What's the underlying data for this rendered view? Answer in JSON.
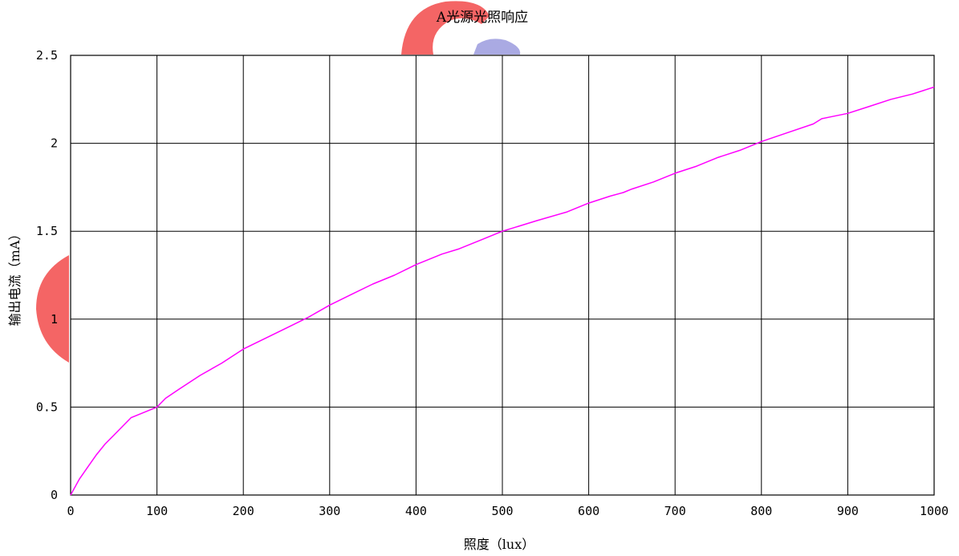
{
  "chart_data": {
    "type": "line",
    "title": "A光源光照响应",
    "xlabel": "照度（lux）",
    "ylabel": "输出电流（mA）",
    "xlim": [
      0,
      1000
    ],
    "ylim": [
      0,
      2.5
    ],
    "x_ticks": [
      0,
      100,
      200,
      300,
      400,
      500,
      600,
      700,
      800,
      900,
      1000
    ],
    "y_ticks": [
      0,
      0.5,
      1,
      1.5,
      2,
      2.5
    ],
    "x_tick_labels": [
      "0",
      "100",
      "200",
      "300",
      "400",
      "500",
      "600",
      "700",
      "800",
      "900",
      "1000"
    ],
    "y_tick_labels": [
      "0",
      "0.5",
      "1",
      "1.5",
      "2",
      "2.5"
    ],
    "grid": true,
    "series": [
      {
        "color": "#ff00ff",
        "x": [
          0,
          10,
          20,
          30,
          40,
          50,
          60,
          70,
          80,
          90,
          100,
          110,
          125,
          150,
          175,
          200,
          225,
          250,
          275,
          300,
          325,
          350,
          375,
          400,
          430,
          450,
          475,
          500,
          520,
          540,
          575,
          600,
          625,
          640,
          650,
          675,
          700,
          725,
          750,
          775,
          800,
          830,
          860,
          870,
          880,
          900,
          925,
          950,
          975,
          1000
        ],
        "y": [
          0,
          0.09,
          0.16,
          0.23,
          0.29,
          0.34,
          0.39,
          0.44,
          0.46,
          0.48,
          0.5,
          0.55,
          0.6,
          0.68,
          0.75,
          0.83,
          0.89,
          0.95,
          1.01,
          1.08,
          1.14,
          1.2,
          1.25,
          1.31,
          1.37,
          1.4,
          1.45,
          1.5,
          1.53,
          1.56,
          1.61,
          1.66,
          1.7,
          1.72,
          1.74,
          1.78,
          1.83,
          1.87,
          1.92,
          1.96,
          2.01,
          2.06,
          2.11,
          2.14,
          2.15,
          2.17,
          2.21,
          2.25,
          2.28,
          2.32
        ]
      }
    ]
  },
  "colors": {
    "grid": "#000000",
    "watermark_red": "#f03535",
    "watermark_blue": "#8a8ad8"
  }
}
